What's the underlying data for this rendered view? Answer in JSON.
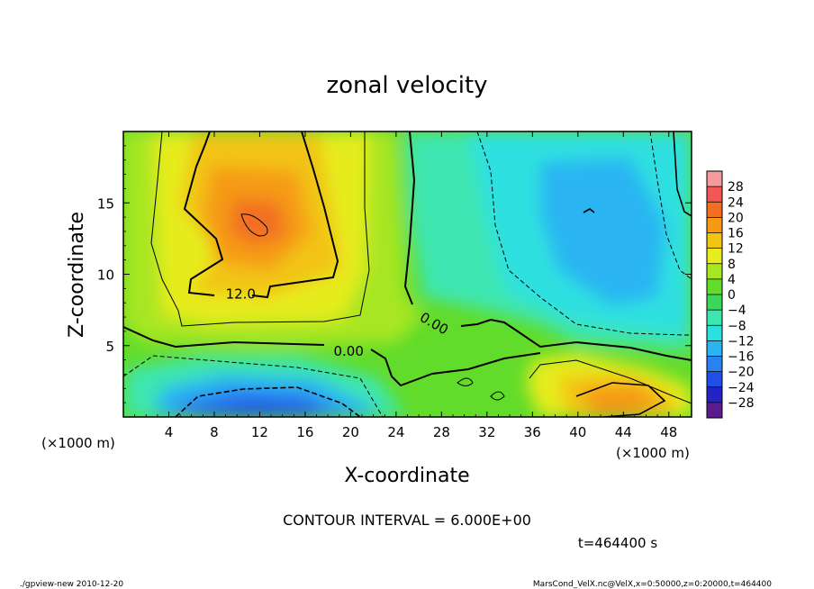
{
  "chart_data": {
    "type": "heatmap",
    "title": "zonal velocity",
    "xlabel": "X-coordinate",
    "ylabel": "Z-coordinate",
    "x_unit": "(×1000 m)",
    "x_unit_right": "(×1000 m)",
    "xlim": [
      0,
      50
    ],
    "ylim": [
      0,
      20
    ],
    "xticks": [
      4,
      8,
      12,
      16,
      20,
      24,
      28,
      32,
      36,
      40,
      44,
      48
    ],
    "yticks": [
      5,
      10,
      15
    ],
    "contour_interval_text": "CONTOUR INTERVAL = 6.000E+00",
    "contour_labels": [
      {
        "text": "12.0",
        "x": 9.0,
        "y": 8.3
      },
      {
        "text": "0.00",
        "x": 18.5,
        "y": 4.3
      },
      {
        "text": "0.00",
        "x": 26.0,
        "y": 6.8
      }
    ],
    "colorbar": {
      "levels": [
        -28,
        -24,
        -20,
        -16,
        -12,
        -8,
        -4,
        0,
        4,
        8,
        12,
        16,
        20,
        24,
        28
      ],
      "labels": [
        "28",
        "24",
        "20",
        "16",
        "12",
        "8",
        "4",
        "0",
        "−4",
        "−8",
        "−12",
        "−16",
        "−20",
        "−24",
        "−28"
      ],
      "colors": [
        "#5a1c8c",
        "#2323c8",
        "#1f4fe6",
        "#2a82f0",
        "#2ab5f2",
        "#2de0e0",
        "#3ce6b0",
        "#3cd75a",
        "#62dc2a",
        "#a8e622",
        "#e6ec1e",
        "#f2c414",
        "#f59a12",
        "#f26e22",
        "#f25656",
        "#f59a9a"
      ]
    }
  },
  "footer": {
    "time_label": "t=464400 s",
    "left_text": "./gpview-new  2010-12-20",
    "right_text": "MarsCond_VelX.nc@VelX,x=0:50000,z=0:20000,t=464400"
  }
}
